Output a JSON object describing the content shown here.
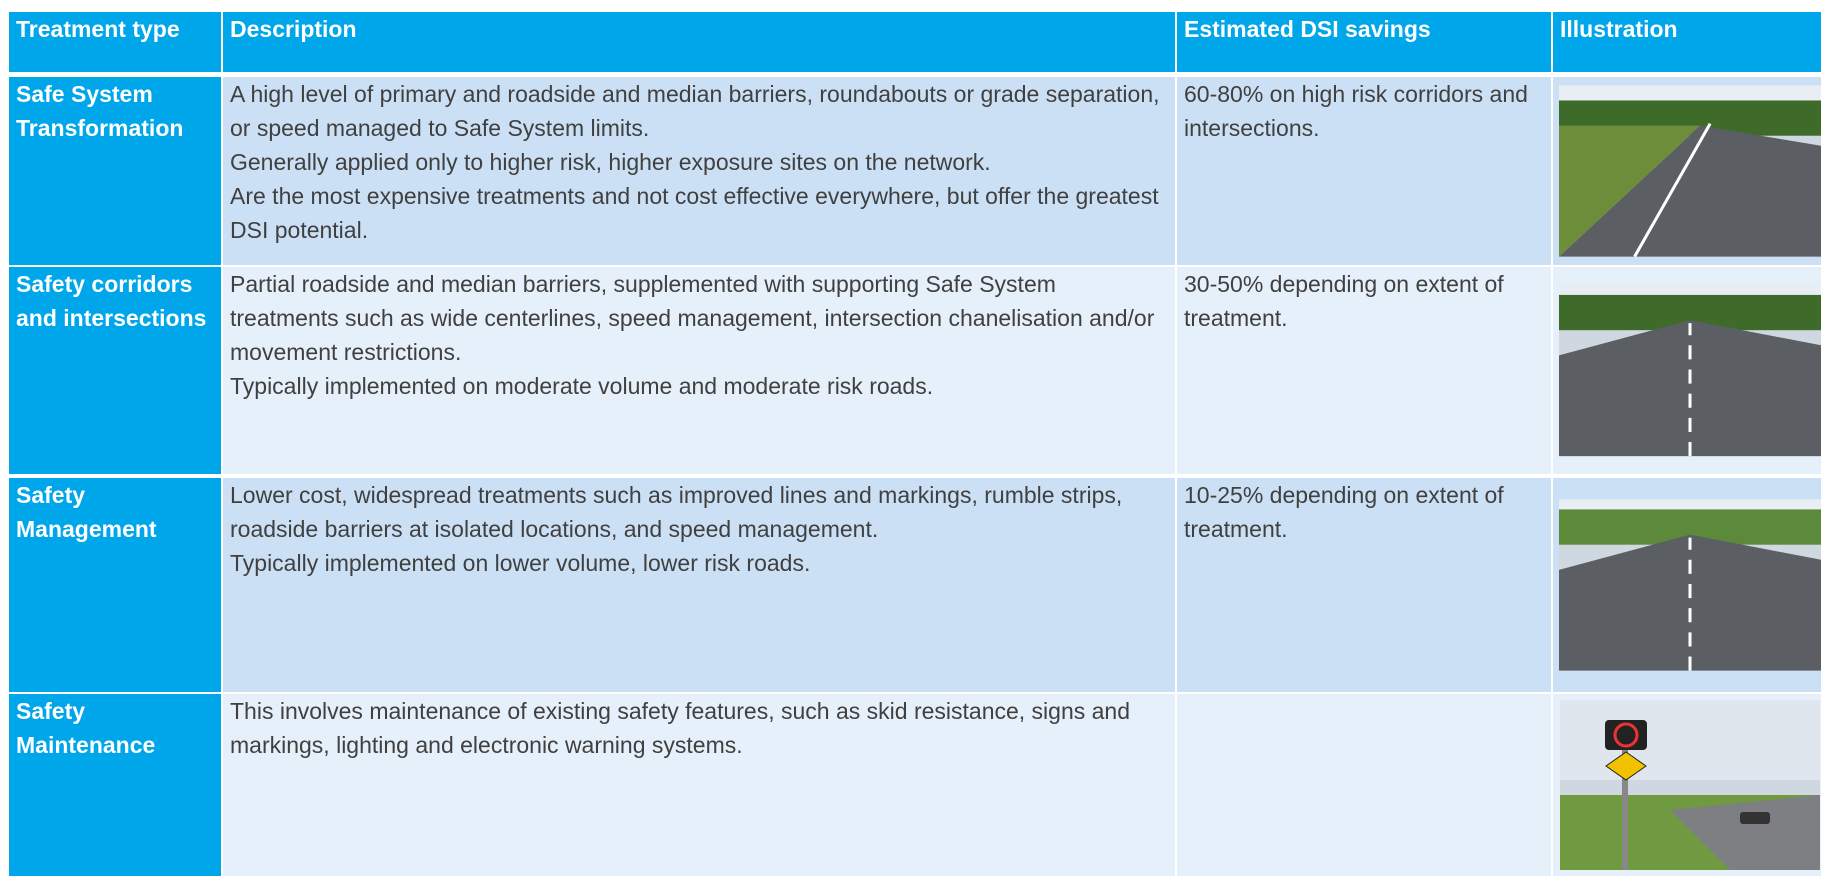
{
  "table": {
    "header": [
      "Treatment type",
      "Description",
      "Estimated DSI savings",
      "Illustration"
    ],
    "rows": [
      {
        "type": "Safe System Transformation",
        "description": [
          "A high level of primary and roadside and median barriers, roundabouts or grade separation, or speed managed to Safe System limits.",
          "Generally applied only to higher risk, higher exposure sites on the network.",
          "Are the most expensive treatments and not cost effective everywhere, but offer the greatest DSI potential."
        ],
        "savings": "60-80% on high risk corridors and intersections."
      },
      {
        "type": "Safety corridors and intersections",
        "description": [
          "Partial roadside and median barriers, supplemented with supporting Safe System treatments such as wide centerlines, speed management, intersection chanelisation and/or movement restrictions.",
          "Typically implemented on moderate volume and moderate risk roads."
        ],
        "savings": "30-50% depending on extent of treatment."
      },
      {
        "type": "Safety Management",
        "description": [
          "Lower cost, widespread treatments such as improved lines and markings, rumble strips, roadside barriers at isolated locations, and speed management.",
          "Typically implemented on lower volume, lower risk roads."
        ],
        "savings": "10-25% depending on extent of treatment."
      },
      {
        "type": "Safety Maintenance",
        "description": [
          "This involves maintenance of existing safety features, such as skid resistance, signs and markings, lighting and electronic warning systems."
        ]
      }
    ]
  }
}
